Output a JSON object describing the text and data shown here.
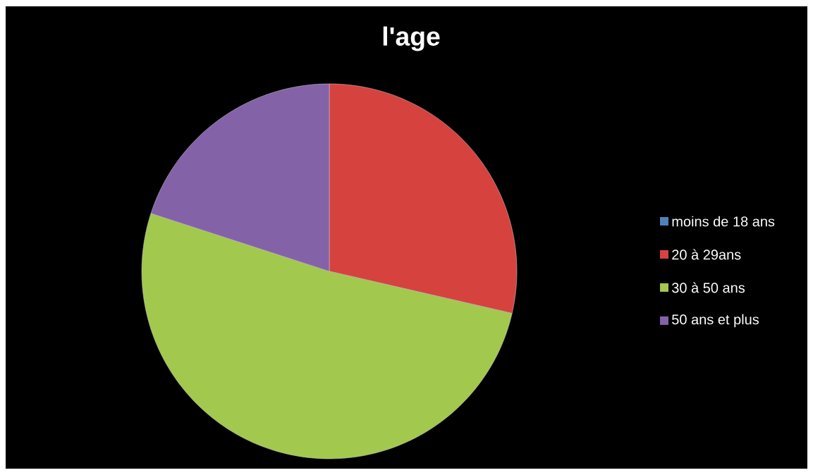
{
  "chart_data": {
    "type": "pie",
    "title": "l'age",
    "categories": [
      "moins de 18 ans",
      "20 à 29ans",
      "30 à 50 ans",
      "50 ans et plus"
    ],
    "values": [
      0,
      28.6,
      51.4,
      20.0
    ],
    "colors": [
      "#4f81bd",
      "#d6423e",
      "#a2c84e",
      "#8462a8"
    ],
    "legend": "right"
  }
}
